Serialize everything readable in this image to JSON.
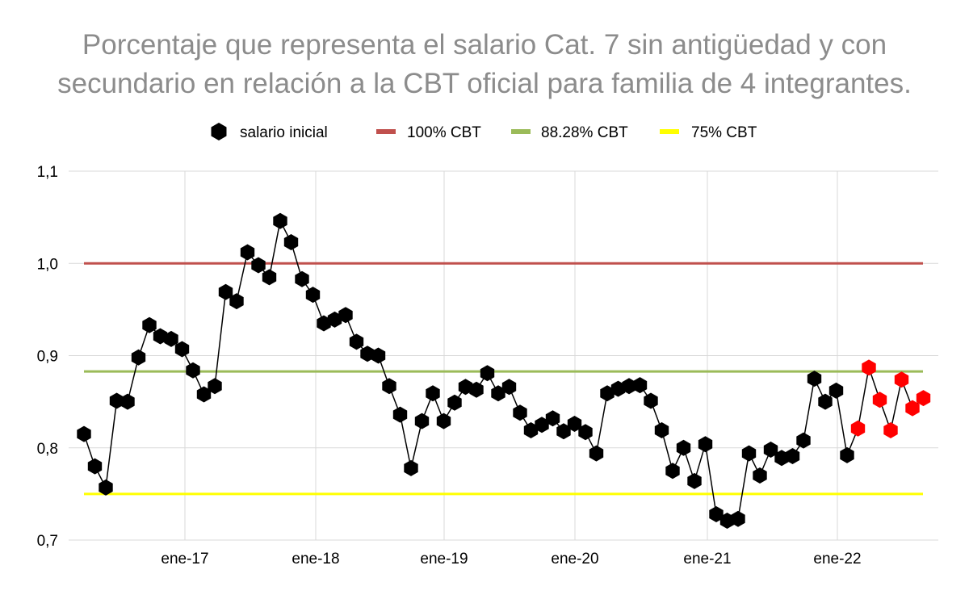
{
  "chart_data": {
    "type": "line",
    "title_line1": "Porcentaje que representa el salario Cat. 7 sin antigüedad y con",
    "title_line2": "secundario en relación a la CBT oficial para familia de 4 integrantes.",
    "ylim": [
      0.7,
      1.1
    ],
    "yticks": [
      0.7,
      0.8,
      0.9,
      1.0,
      1.1
    ],
    "ytick_labels": [
      "0,7",
      "0,8",
      "0,9",
      "1,0",
      "1,1"
    ],
    "xtick_labels": [
      "ene-17",
      "ene-18",
      "ene-19",
      "ene-20",
      "ene-21",
      "ene-22"
    ],
    "legend_position": "top",
    "grid": true,
    "series": [
      {
        "name": "salario inicial",
        "marker": "hexagon",
        "color": "#000000",
        "highlight_color": "#ff0000",
        "highlight_from_index": 71,
        "values": [
          0.815,
          0.78,
          0.757,
          0.851,
          0.85,
          0.898,
          0.933,
          0.921,
          0.918,
          0.907,
          0.884,
          0.858,
          0.867,
          0.969,
          0.959,
          1.012,
          0.998,
          0.985,
          1.046,
          1.023,
          0.983,
          0.966,
          0.935,
          0.939,
          0.944,
          0.915,
          0.902,
          0.9,
          0.867,
          0.836,
          0.778,
          0.829,
          0.859,
          0.829,
          0.849,
          0.866,
          0.863,
          0.881,
          0.859,
          0.866,
          0.838,
          0.819,
          0.825,
          0.832,
          0.818,
          0.826,
          0.817,
          0.794,
          0.859,
          0.864,
          0.867,
          0.868,
          0.851,
          0.819,
          0.775,
          0.8,
          0.764,
          0.804,
          0.728,
          0.721,
          0.723,
          0.794,
          0.77,
          0.798,
          0.789,
          0.791,
          0.808,
          0.875,
          0.85,
          0.862,
          0.792,
          0.821,
          0.887,
          0.852,
          0.819,
          0.874,
          0.843,
          0.854
        ]
      },
      {
        "name": "100% CBT",
        "color": "#c0504d",
        "value": 1.0
      },
      {
        "name": "88.28% CBT",
        "color": "#9bbb59",
        "value": 0.8828
      },
      {
        "name": "75% CBT",
        "color": "#ffff00",
        "value": 0.75
      }
    ]
  }
}
